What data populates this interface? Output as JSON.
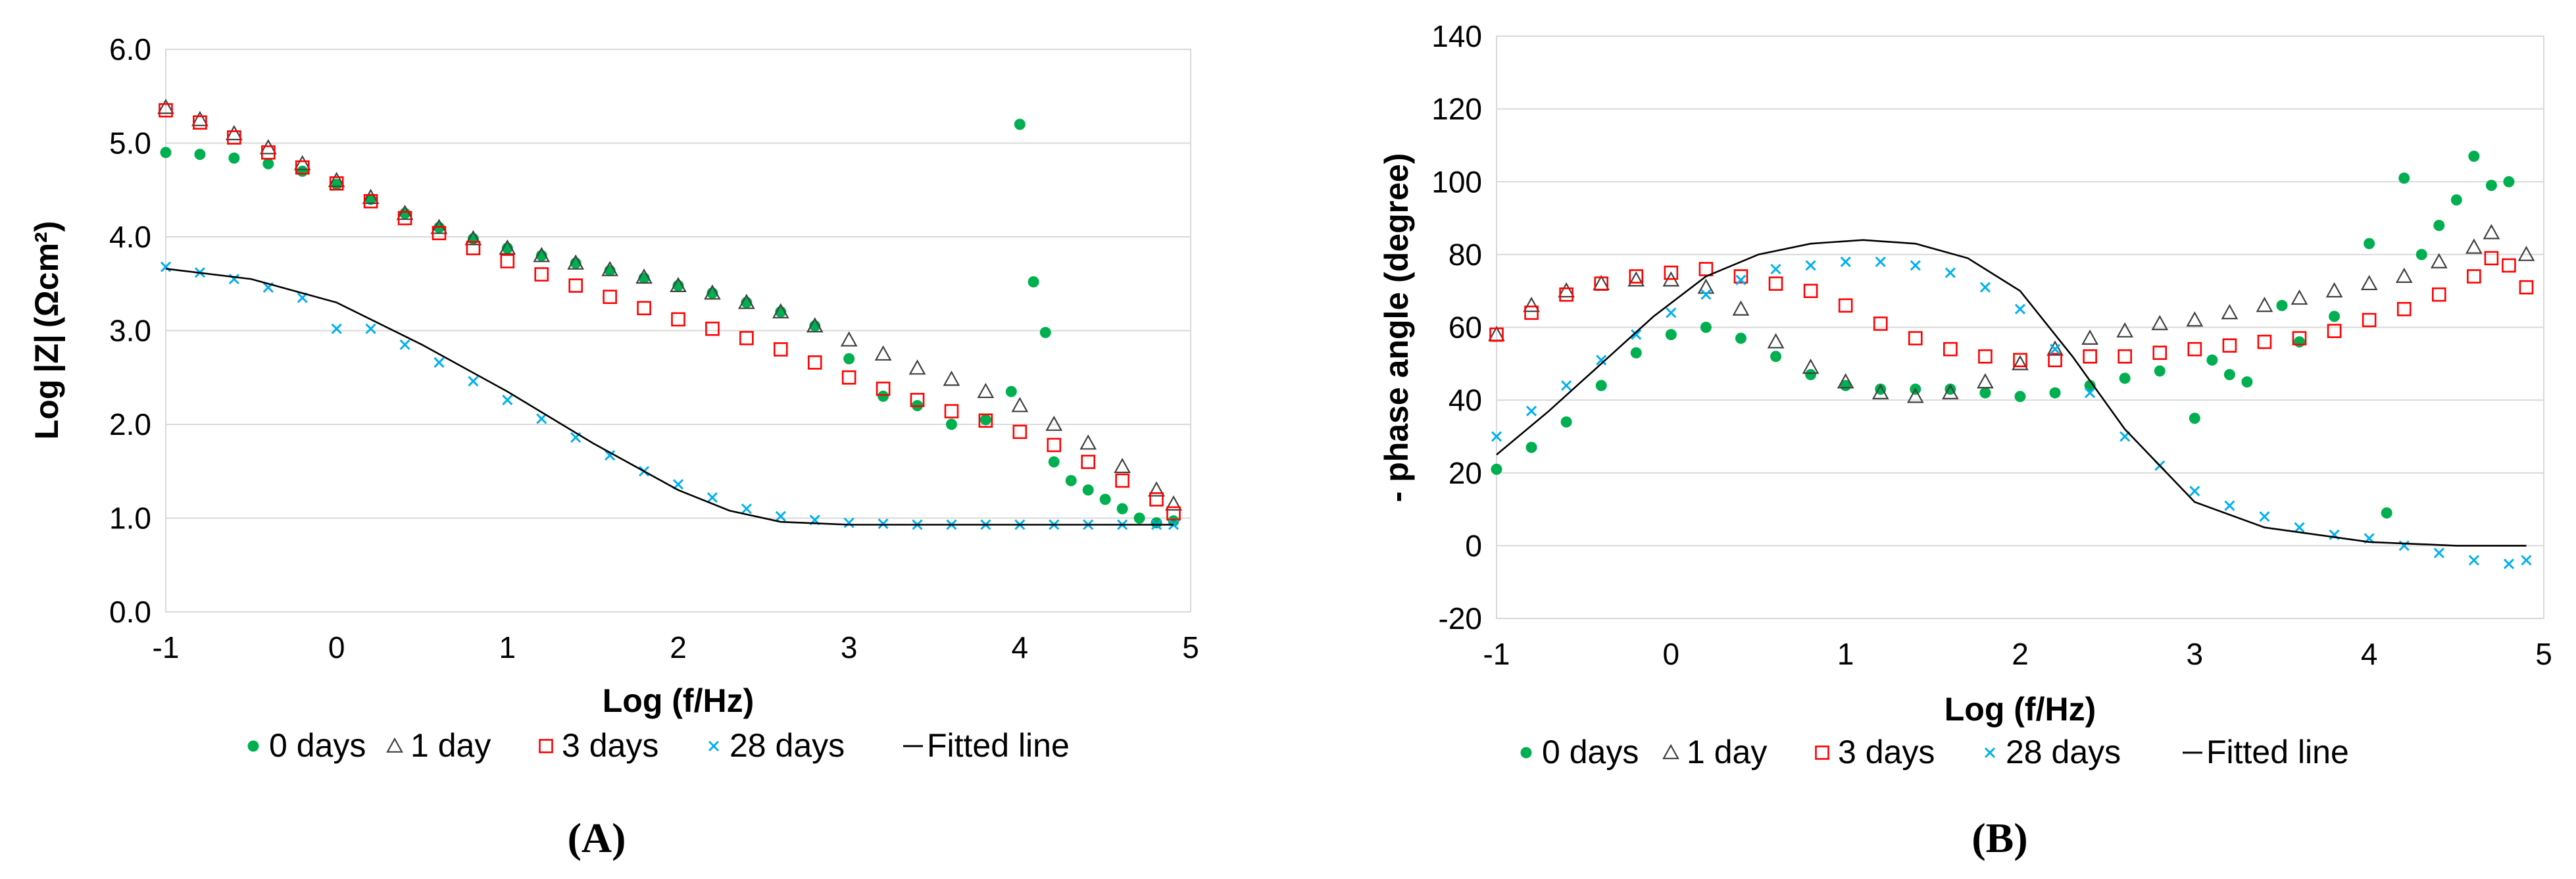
{
  "colors": {
    "day0": "#00b050",
    "day1": "#404040",
    "day3": "#ff0000",
    "day28": "#00b0f0",
    "fit": "#000000",
    "grid": "#d9d9d9"
  },
  "legend": [
    "0 days",
    "1 day",
    "3 days",
    "28 days",
    "Fitted line"
  ],
  "chart_data": [
    {
      "type": "scatter",
      "panel_label": "A",
      "title": "",
      "xlabel": "Log (f/Hz)",
      "ylabel": "Log |Z| (Ωcm²)",
      "xlim": [
        -1,
        5
      ],
      "ylim": [
        0,
        6
      ],
      "xticks": [
        "-1",
        "0",
        "1",
        "2",
        "3",
        "4",
        "5"
      ],
      "yticks": [
        "0.0",
        "1.0",
        "2.0",
        "3.0",
        "4.0",
        "5.0",
        "6.0"
      ],
      "grid": "horizontal",
      "legend_position": "bottom",
      "series": [
        {
          "name": "0 days",
          "marker": "circle",
          "x": [
            -1,
            -0.8,
            -0.6,
            -0.4,
            -0.2,
            0,
            0.2,
            0.4,
            0.6,
            0.8,
            1.0,
            1.2,
            1.4,
            1.6,
            1.8,
            2.0,
            2.2,
            2.4,
            2.6,
            2.8,
            3.0,
            3.2,
            3.4,
            3.6,
            3.8,
            3.95,
            4.0,
            4.08,
            4.15,
            4.2,
            4.3,
            4.4,
            4.5,
            4.6,
            4.7,
            4.8,
            4.9
          ],
          "y": [
            4.9,
            4.88,
            4.84,
            4.78,
            4.7,
            4.56,
            4.4,
            4.25,
            4.1,
            3.98,
            3.88,
            3.8,
            3.72,
            3.64,
            3.56,
            3.48,
            3.4,
            3.3,
            3.2,
            3.05,
            2.7,
            2.3,
            2.2,
            2.0,
            2.05,
            2.35,
            5.2,
            3.52,
            2.98,
            1.6,
            1.4,
            1.3,
            1.2,
            1.1,
            1.0,
            0.95,
            0.97
          ]
        },
        {
          "name": "1 day",
          "marker": "triangle",
          "x": [
            -1,
            -0.8,
            -0.6,
            -0.4,
            -0.2,
            0,
            0.2,
            0.4,
            0.6,
            0.8,
            1.0,
            1.2,
            1.4,
            1.6,
            1.8,
            2.0,
            2.2,
            2.4,
            2.6,
            2.8,
            3.0,
            3.2,
            3.4,
            3.6,
            3.8,
            4.0,
            4.2,
            4.4,
            4.6,
            4.8,
            4.9
          ],
          "y": [
            5.38,
            5.25,
            5.1,
            4.95,
            4.78,
            4.6,
            4.42,
            4.25,
            4.1,
            3.98,
            3.88,
            3.8,
            3.72,
            3.65,
            3.57,
            3.48,
            3.4,
            3.3,
            3.2,
            3.05,
            2.9,
            2.75,
            2.6,
            2.48,
            2.35,
            2.2,
            2.0,
            1.8,
            1.55,
            1.3,
            1.15
          ]
        },
        {
          "name": "3 days",
          "marker": "square",
          "x": [
            -1,
            -0.8,
            -0.6,
            -0.4,
            -0.2,
            0,
            0.2,
            0.4,
            0.6,
            0.8,
            1.0,
            1.2,
            1.4,
            1.6,
            1.8,
            2.0,
            2.2,
            2.4,
            2.6,
            2.8,
            3.0,
            3.2,
            3.4,
            3.6,
            3.8,
            4.0,
            4.2,
            4.4,
            4.6,
            4.8,
            4.9
          ],
          "y": [
            5.35,
            5.22,
            5.06,
            4.9,
            4.74,
            4.57,
            4.38,
            4.2,
            4.04,
            3.88,
            3.74,
            3.6,
            3.48,
            3.36,
            3.24,
            3.12,
            3.02,
            2.92,
            2.8,
            2.66,
            2.5,
            2.38,
            2.26,
            2.14,
            2.04,
            1.92,
            1.78,
            1.6,
            1.4,
            1.2,
            1.05
          ]
        },
        {
          "name": "28 days",
          "marker": "cross",
          "x": [
            -1,
            -0.8,
            -0.6,
            -0.4,
            -0.2,
            0,
            0.2,
            0.4,
            0.6,
            0.8,
            1.0,
            1.2,
            1.4,
            1.6,
            1.8,
            2.0,
            2.2,
            2.4,
            2.6,
            2.8,
            3.0,
            3.2,
            3.4,
            3.6,
            3.8,
            4.0,
            4.2,
            4.4,
            4.6,
            4.8,
            4.9
          ],
          "y": [
            3.68,
            3.62,
            3.55,
            3.46,
            3.35,
            3.02,
            3.02,
            2.85,
            2.66,
            2.46,
            2.26,
            2.06,
            1.86,
            1.67,
            1.5,
            1.36,
            1.22,
            1.1,
            1.02,
            0.98,
            0.95,
            0.94,
            0.93,
            0.93,
            0.93,
            0.93,
            0.93,
            0.93,
            0.93,
            0.93,
            0.93
          ]
        },
        {
          "name": "Fitted line",
          "marker": "line",
          "x": [
            -1,
            -0.5,
            0,
            0.5,
            1.0,
            1.5,
            2.0,
            2.3,
            2.6,
            3.0,
            3.5,
            4.0,
            4.5,
            4.9
          ],
          "y": [
            3.66,
            3.55,
            3.3,
            2.85,
            2.35,
            1.8,
            1.3,
            1.08,
            0.96,
            0.93,
            0.93,
            0.93,
            0.93,
            0.93
          ]
        }
      ]
    },
    {
      "type": "scatter",
      "panel_label": "B",
      "title": "",
      "xlabel": "Log (f/Hz)",
      "ylabel": "- phase angle (degree)",
      "xlim": [
        -1,
        5
      ],
      "ylim": [
        -20,
        140
      ],
      "xticks": [
        "-1",
        "0",
        "1",
        "2",
        "3",
        "4",
        "5"
      ],
      "yticks": [
        "-20",
        "0",
        "20",
        "40",
        "60",
        "80",
        "100",
        "120",
        "140"
      ],
      "grid": "horizontal",
      "legend_position": "bottom",
      "series": [
        {
          "name": "0 days",
          "marker": "circle",
          "x": [
            -1,
            -0.8,
            -0.6,
            -0.4,
            -0.2,
            0,
            0.2,
            0.4,
            0.6,
            0.8,
            1.0,
            1.2,
            1.4,
            1.6,
            1.8,
            2.0,
            2.2,
            2.4,
            2.6,
            2.8,
            3.0,
            3.1,
            3.2,
            3.3,
            3.5,
            3.6,
            3.8,
            4.0,
            4.1,
            4.2,
            4.3,
            4.4,
            4.5,
            4.6,
            4.7,
            4.8
          ],
          "y": [
            21,
            27,
            34,
            44,
            53,
            58,
            60,
            57,
            52,
            47,
            44,
            43,
            43,
            43,
            42,
            41,
            42,
            44,
            46,
            48,
            35,
            51,
            47,
            45,
            66,
            56,
            63,
            83,
            9,
            101,
            80,
            88,
            95,
            107,
            99,
            100
          ]
        },
        {
          "name": "1 day",
          "marker": "triangle",
          "x": [
            -1,
            -0.8,
            -0.6,
            -0.4,
            -0.2,
            0,
            0.2,
            0.4,
            0.6,
            0.8,
            1.0,
            1.2,
            1.4,
            1.6,
            1.8,
            2.0,
            2.2,
            2.4,
            2.6,
            2.8,
            3.0,
            3.2,
            3.4,
            3.6,
            3.8,
            4.0,
            4.2,
            4.4,
            4.6,
            4.7,
            4.9
          ],
          "y": [
            58,
            66,
            70,
            72,
            73,
            73,
            71,
            65,
            56,
            49,
            45,
            42,
            41,
            42,
            45,
            50,
            54,
            57,
            59,
            61,
            62,
            64,
            66,
            68,
            70,
            72,
            74,
            78,
            82,
            86,
            80
          ]
        },
        {
          "name": "3 days",
          "marker": "square",
          "x": [
            -1,
            -0.8,
            -0.6,
            -0.4,
            -0.2,
            0,
            0.2,
            0.4,
            0.6,
            0.8,
            1.0,
            1.2,
            1.4,
            1.6,
            1.8,
            2.0,
            2.2,
            2.4,
            2.6,
            2.8,
            3.0,
            3.2,
            3.4,
            3.6,
            3.8,
            4.0,
            4.2,
            4.4,
            4.6,
            4.7,
            4.8,
            4.9
          ],
          "y": [
            58,
            64,
            69,
            72,
            74,
            75,
            76,
            74,
            72,
            70,
            66,
            61,
            57,
            54,
            52,
            51,
            51,
            52,
            52,
            53,
            54,
            55,
            56,
            57,
            59,
            62,
            65,
            69,
            74,
            79,
            77,
            71
          ]
        },
        {
          "name": "28 days",
          "marker": "cross",
          "x": [
            -1,
            -0.8,
            -0.6,
            -0.4,
            -0.2,
            0,
            0.2,
            0.4,
            0.6,
            0.8,
            1.0,
            1.2,
            1.4,
            1.6,
            1.8,
            2.0,
            2.2,
            2.4,
            2.6,
            2.8,
            3.0,
            3.2,
            3.4,
            3.6,
            3.8,
            4.0,
            4.2,
            4.4,
            4.6,
            4.8,
            4.9
          ],
          "y": [
            30,
            37,
            44,
            51,
            58,
            64,
            69,
            73,
            76,
            77,
            78,
            78,
            77,
            75,
            71,
            65,
            54,
            42,
            30,
            22,
            15,
            11,
            8,
            5,
            3,
            2,
            0,
            -2,
            -4,
            -5,
            -4
          ]
        },
        {
          "name": "Fitted line",
          "marker": "line",
          "x": [
            -1,
            -0.7,
            -0.4,
            -0.1,
            0.2,
            0.5,
            0.8,
            1.1,
            1.4,
            1.7,
            2.0,
            2.3,
            2.6,
            3.0,
            3.4,
            4.0,
            4.5,
            4.9
          ],
          "y": [
            25,
            37,
            50,
            63,
            74,
            80,
            83,
            84,
            83,
            79,
            70,
            52,
            32,
            12,
            5,
            1,
            0,
            0
          ]
        }
      ]
    }
  ]
}
